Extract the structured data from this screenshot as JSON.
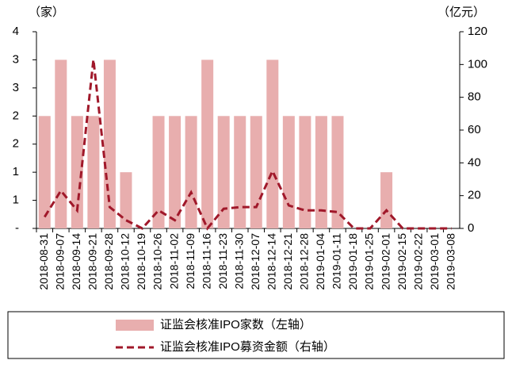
{
  "chart_data": {
    "type": "bar-line",
    "y_unit": "（家）",
    "y2_unit": "（亿元）",
    "categories": [
      "2018-08-31",
      "2018-09-07",
      "2018-09-14",
      "2018-09-21",
      "2018-09-28",
      "2018-10-12",
      "2018-10-19",
      "2018-10-26",
      "2018-11-02",
      "2018-11-09",
      "2018-11-16",
      "2018-11-23",
      "2018-11-30",
      "2018-12-07",
      "2018-12-14",
      "2018-12-21",
      "2018-12-28",
      "2019-01-04",
      "2019-01-11",
      "2019-01-18",
      "2019-01-25",
      "2019-02-01",
      "2019-02-15",
      "2019-02-22",
      "2019-03-01",
      "2019-03-08"
    ],
    "series": [
      {
        "name": "证监会核准IPO家数（左轴）",
        "type": "bar",
        "color": "#e8aeae",
        "axis": "y",
        "values": [
          2,
          3,
          2,
          2,
          3,
          1,
          0,
          2,
          2,
          2,
          3,
          2,
          2,
          2,
          3,
          2,
          2,
          2,
          2,
          0,
          0,
          1,
          0,
          0,
          0,
          0
        ]
      },
      {
        "name": "证监会核准IPO募资金额（右轴）",
        "type": "line",
        "color": "#a0182a",
        "axis": "y2",
        "dashed": true,
        "values": [
          7,
          23,
          11,
          103,
          13,
          5,
          0,
          11,
          5,
          22,
          0,
          12,
          13,
          13,
          35,
          14,
          11,
          11,
          10,
          0,
          0,
          11,
          0,
          0,
          0,
          0
        ]
      }
    ],
    "ylim": [
      0,
      3.5
    ],
    "yticks": [
      {
        "value": 0,
        "label": "-"
      },
      {
        "value": 0.5,
        "label": "1"
      },
      {
        "value": 1,
        "label": "1"
      },
      {
        "value": 1.5,
        "label": "2"
      },
      {
        "value": 2,
        "label": "2"
      },
      {
        "value": 2.5,
        "label": "3"
      },
      {
        "value": 3,
        "label": "3"
      },
      {
        "value": 3.5,
        "label": "4"
      }
    ],
    "y2lim": [
      0,
      120
    ],
    "y2ticks": [
      0,
      20,
      40,
      60,
      80,
      100,
      120
    ]
  }
}
